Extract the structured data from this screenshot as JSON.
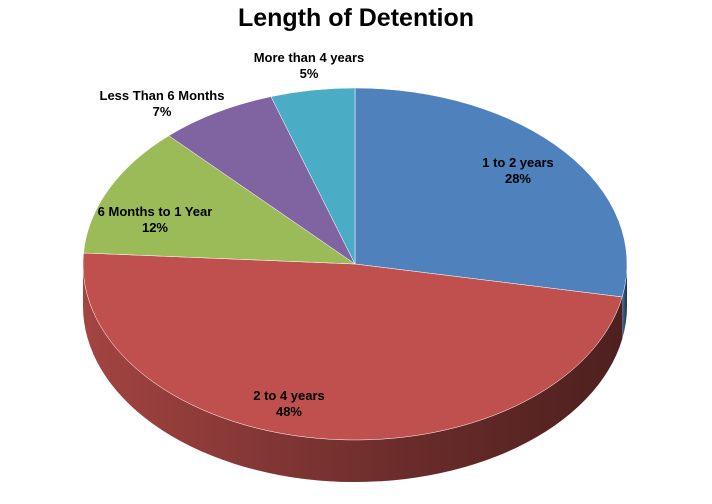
{
  "chart_data": {
    "type": "pie",
    "title": "Length of Detention",
    "three_d": true,
    "start": "12 o'clock, clockwise",
    "slices": [
      {
        "label": "1 to 2 years",
        "value": 28,
        "pct_label": "28%",
        "color": "#4F81BD"
      },
      {
        "label": "2 to 4 years",
        "value": 48,
        "pct_label": "48%",
        "color": "#C0504D"
      },
      {
        "label": "6 Months to 1 Year",
        "value": 12,
        "pct_label": "12%",
        "color": "#9BBB59"
      },
      {
        "label": "Less Than 6 Months",
        "value": 7,
        "pct_label": "7%",
        "color": "#8064A2"
      },
      {
        "label": "More than 4 years",
        "value": 5,
        "pct_label": "5%",
        "color": "#4BACC6"
      }
    ],
    "legend": "none"
  }
}
